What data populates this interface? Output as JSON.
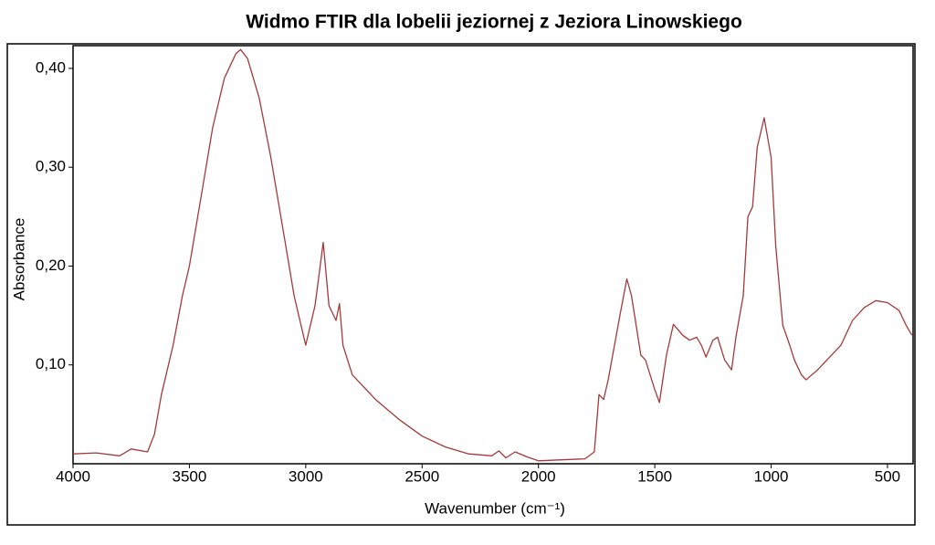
{
  "chart_data": {
    "type": "line",
    "title": "Widmo FTIR dla lobelii jeziornej z Jeziora Linowskiego",
    "x_label": "Wavenumber (cm⁻¹)",
    "y_label": "Absorbance",
    "color": "#a33a3a",
    "xlim": [
      4000,
      390
    ],
    "xticks": [
      4000,
      3500,
      3000,
      2500,
      2000,
      1500,
      1000,
      500
    ],
    "ylim": [
      0,
      0.423
    ],
    "yticks": [
      {
        "value": 0.1,
        "label": "0,10"
      },
      {
        "value": 0.2,
        "label": "0,20"
      },
      {
        "value": 0.3,
        "label": "0,30"
      },
      {
        "value": 0.4,
        "label": "0,40"
      }
    ],
    "x": [
      4000,
      3900,
      3800,
      3750,
      3680,
      3650,
      3620,
      3570,
      3530,
      3500,
      3450,
      3400,
      3350,
      3300,
      3280,
      3250,
      3200,
      3150,
      3100,
      3050,
      3000,
      2960,
      2925,
      2900,
      2870,
      2855,
      2840,
      2800,
      2700,
      2600,
      2500,
      2400,
      2300,
      2200,
      2170,
      2140,
      2100,
      2050,
      2000,
      1900,
      1800,
      1760,
      1740,
      1720,
      1700,
      1650,
      1620,
      1600,
      1560,
      1540,
      1500,
      1480,
      1450,
      1420,
      1380,
      1350,
      1320,
      1300,
      1280,
      1250,
      1230,
      1200,
      1170,
      1150,
      1120,
      1100,
      1080,
      1060,
      1030,
      1000,
      980,
      950,
      920,
      900,
      870,
      850,
      800,
      760,
      700,
      650,
      600,
      550,
      500,
      450,
      420,
      395
    ],
    "values": [
      0.01,
      0.011,
      0.008,
      0.015,
      0.012,
      0.03,
      0.07,
      0.12,
      0.17,
      0.2,
      0.27,
      0.34,
      0.39,
      0.415,
      0.419,
      0.41,
      0.37,
      0.31,
      0.24,
      0.17,
      0.12,
      0.16,
      0.224,
      0.16,
      0.145,
      0.162,
      0.12,
      0.09,
      0.065,
      0.045,
      0.028,
      0.017,
      0.01,
      0.008,
      0.013,
      0.006,
      0.012,
      0.007,
      0.003,
      0.004,
      0.005,
      0.012,
      0.07,
      0.065,
      0.085,
      0.15,
      0.187,
      0.17,
      0.11,
      0.105,
      0.075,
      0.062,
      0.11,
      0.141,
      0.13,
      0.125,
      0.128,
      0.12,
      0.108,
      0.125,
      0.128,
      0.105,
      0.095,
      0.13,
      0.17,
      0.25,
      0.26,
      0.32,
      0.35,
      0.31,
      0.22,
      0.14,
      0.12,
      0.105,
      0.09,
      0.085,
      0.095,
      0.105,
      0.12,
      0.145,
      0.158,
      0.165,
      0.163,
      0.155,
      0.14,
      0.13
    ]
  }
}
